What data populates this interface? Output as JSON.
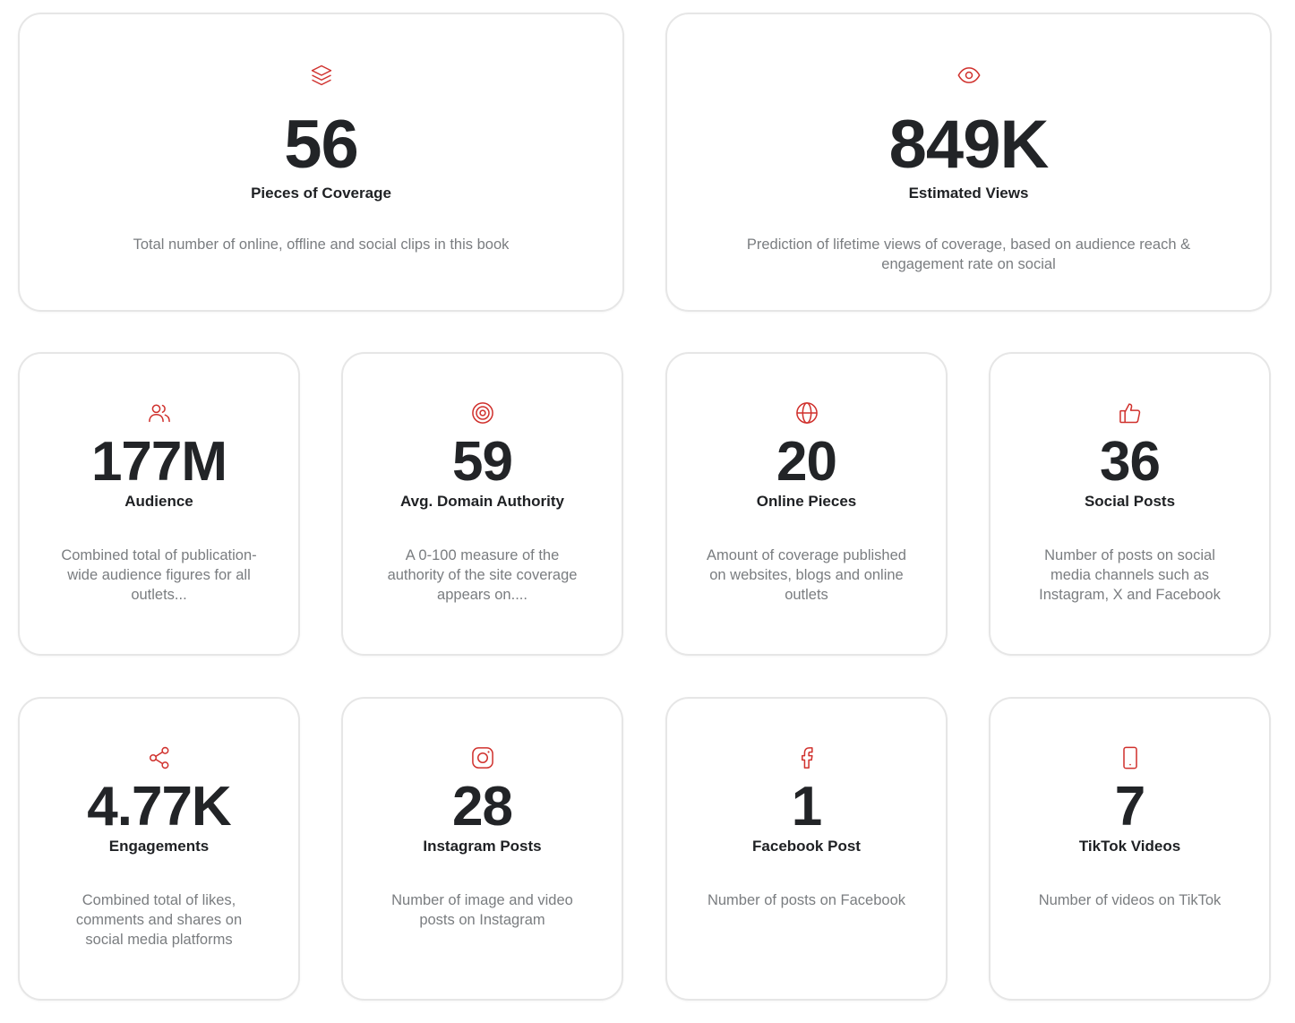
{
  "accent_color": "#d0312d",
  "cards": [
    {
      "icon": "layers-icon",
      "value": "56",
      "label": "Pieces of Coverage",
      "description": "Total number of online, offline and social clips in this book"
    },
    {
      "icon": "eye-icon",
      "value": "849K",
      "label": "Estimated Views",
      "description": "Prediction of lifetime views of coverage, based on audience reach & engagement rate on social"
    },
    {
      "icon": "users-icon",
      "value": "177M",
      "label": "Audience",
      "description": "Combined total of publication-wide audience figures for all outlets..."
    },
    {
      "icon": "target-icon",
      "value": "59",
      "label": "Avg. Domain Authority",
      "description": "A 0-100 measure of the authority of the site coverage appears on...."
    },
    {
      "icon": "globe-icon",
      "value": "20",
      "label": "Online Pieces",
      "description": "Amount of coverage published on websites, blogs and online outlets"
    },
    {
      "icon": "thumbs-up-icon",
      "value": "36",
      "label": "Social Posts",
      "description": "Number of posts on social media channels such as Instagram, X and Facebook"
    },
    {
      "icon": "share-icon",
      "value": "4.77K",
      "label": "Engagements",
      "description": "Combined total of likes, comments and shares on social media platforms"
    },
    {
      "icon": "instagram-icon",
      "value": "28",
      "label": "Instagram Posts",
      "description": "Number of image and video posts on Instagram"
    },
    {
      "icon": "facebook-icon",
      "value": "1",
      "label": "Facebook Post",
      "description": "Number of posts on Facebook"
    },
    {
      "icon": "mobile-phone-icon",
      "value": "7",
      "label": "TikTok Videos",
      "description": "Number of videos on TikTok"
    }
  ]
}
